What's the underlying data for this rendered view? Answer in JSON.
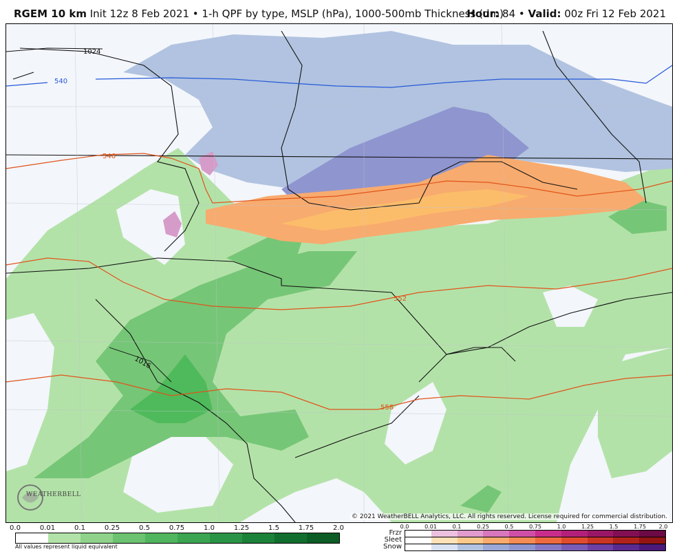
{
  "header": {
    "model": "RGEM 10 km",
    "description": "Init 12z 8 Feb 2021 • 1-h QPF by type, MSLP (hPa), 1000-500mb Thickness (dm)",
    "hour_label": "Hour:",
    "hour_value": "84",
    "bullet": "•",
    "valid_label": "Valid:",
    "valid_value": "00z Fri 12 Feb 2021"
  },
  "map": {
    "pressure_label": "1024",
    "pressure_label_2": "1016",
    "thickness_labels": [
      "540",
      "546",
      "552",
      "558"
    ],
    "colors": {
      "background": "#f3f6fb",
      "snow_light": "#b1c3e0",
      "snow_mod": "#8f95cf",
      "sleet": "#f8ab6e",
      "sleet_heavy": "#fcbd6b",
      "frzr": "#d69cc9",
      "rain_light": "#b3e2a8",
      "rain_mod": "#76c677",
      "rain_heavy": "#4fba5b",
      "thickness_blue": "#2558d8",
      "thickness_red": "#e0531a"
    }
  },
  "copyright": "© 2021 WeatherBELL Analytics, LLC. All rights reserved. License required for commercial distribution.",
  "logo": {
    "text": "WEATHERBELL"
  },
  "legend": {
    "rain_ticks": [
      "0.0",
      "0.01",
      "0.1",
      "0.25",
      "0.5",
      "0.75",
      "1.0",
      "1.25",
      "1.5",
      "1.75",
      "2.0"
    ],
    "rain_colors": [
      "#ffffff",
      "#b3e2a8",
      "#8fd38a",
      "#6cc270",
      "#50b55e",
      "#3ba552",
      "#2a9446",
      "#1c8139",
      "#126e2e",
      "#0b5c25"
    ],
    "note": "All values represent liquid equivalent",
    "ptype_ticks": [
      "0.0",
      "0.01",
      "0.1",
      "0.25",
      "0.5",
      "0.75",
      "1.0",
      "1.25",
      "1.5",
      "1.75",
      "2.0"
    ],
    "frzr_label": "Frzr",
    "sleet_label": "Sleet",
    "snow_label": "Snow",
    "frzr_colors": [
      "#ffffff",
      "#ecc0de",
      "#e19bcd",
      "#d877bc",
      "#d04fa6",
      "#c92d8c",
      "#b3207a",
      "#9a1766",
      "#820f54",
      "#6b0a44"
    ],
    "sleet_colors": [
      "#ffffff",
      "#fde1b7",
      "#fbc98a",
      "#f8ab6e",
      "#f58b55",
      "#ef6a3f",
      "#e24c2e",
      "#cb3524",
      "#b1221b",
      "#931413"
    ],
    "snow_colors": [
      "#ffffff",
      "#d8e2f2",
      "#b1c3e0",
      "#9aa8d8",
      "#8f95cf",
      "#8678c4",
      "#7a5bb6",
      "#6c40a5",
      "#5b2a90",
      "#4a197a"
    ]
  }
}
